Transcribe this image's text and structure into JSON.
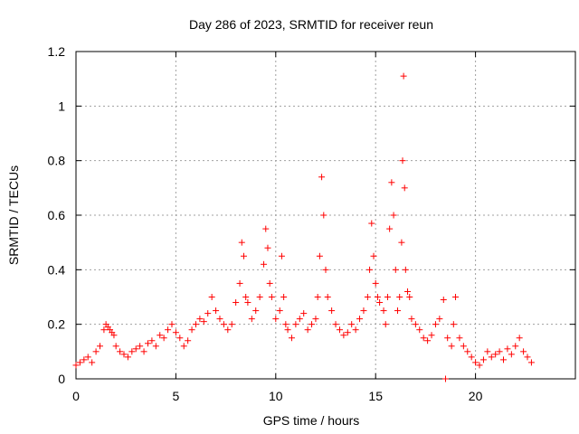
{
  "chart_data": {
    "type": "scatter",
    "title": "Day 286 of 2023, SRMTID for receiver reun",
    "xlabel": "GPS time / hours",
    "ylabel": "SRMTID / TECUs",
    "xlim": [
      0,
      25
    ],
    "ylim": [
      0,
      1.2
    ],
    "xticks": [
      0,
      5,
      10,
      15,
      20
    ],
    "xtick_labels": [
      "0",
      "5",
      "10",
      "15",
      "20"
    ],
    "yticks": [
      0,
      0.2,
      0.4,
      0.6,
      0.8,
      1.0,
      1.2
    ],
    "ytick_labels": [
      "0",
      "0.2",
      "0.4",
      "0.6",
      "0.8",
      "1",
      "1.2"
    ],
    "grid": true,
    "marker": "+",
    "color": "#ff0000",
    "series": [
      {
        "name": "SRMTID",
        "x": [
          0.0,
          0.2,
          0.4,
          0.6,
          0.8,
          1.0,
          1.2,
          1.4,
          1.5,
          1.6,
          1.7,
          1.8,
          1.9,
          2.0,
          2.2,
          2.4,
          2.6,
          2.8,
          3.0,
          3.2,
          3.4,
          3.6,
          3.8,
          4.0,
          4.2,
          4.4,
          4.6,
          4.8,
          5.0,
          5.2,
          5.4,
          5.6,
          5.8,
          6.0,
          6.2,
          6.4,
          6.6,
          6.8,
          7.0,
          7.2,
          7.4,
          7.6,
          7.8,
          8.0,
          8.2,
          8.3,
          8.4,
          8.5,
          8.6,
          8.8,
          9.0,
          9.2,
          9.4,
          9.5,
          9.6,
          9.7,
          9.8,
          10.0,
          10.2,
          10.3,
          10.4,
          10.5,
          10.6,
          10.8,
          11.0,
          11.2,
          11.4,
          11.6,
          11.8,
          12.0,
          12.1,
          12.2,
          12.3,
          12.4,
          12.5,
          12.6,
          12.8,
          13.0,
          13.2,
          13.4,
          13.6,
          13.8,
          14.0,
          14.2,
          14.4,
          14.6,
          14.7,
          14.8,
          14.9,
          15.0,
          15.1,
          15.2,
          15.4,
          15.5,
          15.6,
          15.7,
          15.8,
          15.9,
          16.0,
          16.1,
          16.2,
          16.3,
          16.35,
          16.4,
          16.45,
          16.5,
          16.6,
          16.7,
          16.8,
          17.0,
          17.2,
          17.4,
          17.6,
          17.8,
          18.0,
          18.2,
          18.4,
          18.5,
          18.6,
          18.8,
          18.9,
          19.0,
          19.2,
          19.4,
          19.6,
          19.8,
          20.0,
          20.2,
          20.4,
          20.6,
          20.8,
          21.0,
          21.2,
          21.4,
          21.6,
          21.8,
          22.0,
          22.2,
          22.4,
          22.6,
          22.8
        ],
        "y": [
          0.05,
          0.06,
          0.07,
          0.08,
          0.06,
          0.1,
          0.12,
          0.18,
          0.2,
          0.19,
          0.18,
          0.17,
          0.16,
          0.12,
          0.1,
          0.09,
          0.08,
          0.1,
          0.11,
          0.12,
          0.1,
          0.13,
          0.14,
          0.12,
          0.16,
          0.15,
          0.18,
          0.2,
          0.17,
          0.15,
          0.12,
          0.14,
          0.18,
          0.2,
          0.22,
          0.21,
          0.24,
          0.3,
          0.25,
          0.22,
          0.2,
          0.18,
          0.2,
          0.28,
          0.35,
          0.5,
          0.45,
          0.3,
          0.28,
          0.22,
          0.25,
          0.3,
          0.42,
          0.55,
          0.48,
          0.35,
          0.3,
          0.22,
          0.25,
          0.45,
          0.3,
          0.2,
          0.18,
          0.15,
          0.2,
          0.22,
          0.24,
          0.18,
          0.2,
          0.22,
          0.3,
          0.45,
          0.74,
          0.6,
          0.4,
          0.3,
          0.25,
          0.2,
          0.18,
          0.16,
          0.17,
          0.2,
          0.18,
          0.22,
          0.25,
          0.3,
          0.4,
          0.57,
          0.45,
          0.35,
          0.3,
          0.28,
          0.25,
          0.2,
          0.3,
          0.55,
          0.72,
          0.6,
          0.4,
          0.25,
          0.3,
          0.5,
          0.8,
          1.11,
          0.7,
          0.4,
          0.32,
          0.3,
          0.22,
          0.2,
          0.18,
          0.15,
          0.14,
          0.16,
          0.2,
          0.22,
          0.29,
          0.0,
          0.15,
          0.12,
          0.2,
          0.3,
          0.15,
          0.12,
          0.1,
          0.08,
          0.06,
          0.05,
          0.07,
          0.1,
          0.08,
          0.09,
          0.1,
          0.07,
          0.11,
          0.09,
          0.12,
          0.15,
          0.1,
          0.08,
          0.06
        ]
      }
    ]
  }
}
